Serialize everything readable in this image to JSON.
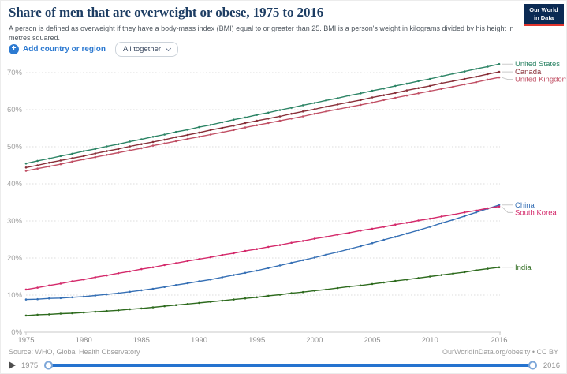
{
  "header": {
    "title": "Share of men that are overweight or obese, 1975 to 2016",
    "subtitle": "A person is defined as overweight if they have a body-mass index (BMI) equal to or greater than 25. BMI is a person's weight in kilograms divided by his height in metres squared.",
    "logo": {
      "line1": "Our World",
      "line2": "in Data"
    }
  },
  "controls": {
    "add_button_label": "Add country or region",
    "dropdown_value": "All together"
  },
  "chart_data": {
    "type": "line",
    "title": "Share of men that are overweight or obese, 1975 to 2016",
    "ylabel": "",
    "xlabel": "",
    "ylim": [
      0,
      75
    ],
    "yticks": [
      0,
      10,
      20,
      30,
      40,
      50,
      60,
      70
    ],
    "ytick_suffix": "%",
    "xticks": [
      1975,
      1980,
      1985,
      1990,
      1995,
      2000,
      2005,
      2010,
      2016
    ],
    "x_range": [
      1975,
      2016
    ],
    "grid": true,
    "legend_position": "right-edge-labels",
    "x": [
      1975,
      1976,
      1977,
      1978,
      1979,
      1980,
      1981,
      1982,
      1983,
      1984,
      1985,
      1986,
      1987,
      1988,
      1989,
      1990,
      1991,
      1992,
      1993,
      1994,
      1995,
      1996,
      1997,
      1998,
      1999,
      2000,
      2001,
      2002,
      2003,
      2004,
      2005,
      2006,
      2007,
      2008,
      2009,
      2010,
      2011,
      2012,
      2013,
      2014,
      2015,
      2016
    ],
    "series": [
      {
        "name": "United States",
        "color": "#2C8465",
        "values": [
          45.5,
          46.2,
          46.8,
          47.5,
          48.1,
          48.8,
          49.4,
          50.1,
          50.7,
          51.4,
          52.0,
          52.7,
          53.3,
          54.0,
          54.6,
          55.3,
          55.9,
          56.6,
          57.3,
          57.9,
          58.6,
          59.2,
          59.9,
          60.5,
          61.2,
          61.8,
          62.5,
          63.1,
          63.8,
          64.4,
          65.1,
          65.7,
          66.4,
          67.0,
          67.7,
          68.3,
          69.0,
          69.7,
          70.3,
          71.0,
          71.6,
          72.3
        ]
      },
      {
        "name": "Canada",
        "color": "#883039",
        "values": [
          44.4,
          45.0,
          45.7,
          46.3,
          46.9,
          47.5,
          48.2,
          48.8,
          49.4,
          50.1,
          50.7,
          51.3,
          51.9,
          52.6,
          53.2,
          53.8,
          54.5,
          55.1,
          55.7,
          56.4,
          57.0,
          57.6,
          58.2,
          58.9,
          59.5,
          60.1,
          60.8,
          61.4,
          62.0,
          62.6,
          63.3,
          63.9,
          64.5,
          65.2,
          65.8,
          66.4,
          67.1,
          67.7,
          68.3,
          68.9,
          69.6,
          70.2
        ]
      },
      {
        "name": "United Kingdom",
        "color": "#C15065",
        "values": [
          43.5,
          44.1,
          44.7,
          45.3,
          46.0,
          46.6,
          47.2,
          47.8,
          48.4,
          49.0,
          49.6,
          50.3,
          50.9,
          51.5,
          52.1,
          52.7,
          53.3,
          53.9,
          54.5,
          55.2,
          55.8,
          56.4,
          57.0,
          57.6,
          58.2,
          58.9,
          59.5,
          60.1,
          60.7,
          61.3,
          61.9,
          62.6,
          63.2,
          63.8,
          64.4,
          65.0,
          65.6,
          66.2,
          66.8,
          67.4,
          68.1,
          68.7
        ]
      },
      {
        "name": "China",
        "color": "#3670B5",
        "values": [
          8.8,
          8.9,
          9.1,
          9.2,
          9.4,
          9.6,
          9.9,
          10.2,
          10.5,
          10.9,
          11.3,
          11.7,
          12.2,
          12.7,
          13.2,
          13.7,
          14.2,
          14.8,
          15.4,
          16.0,
          16.6,
          17.3,
          18.0,
          18.7,
          19.4,
          20.1,
          20.9,
          21.6,
          22.4,
          23.2,
          24.0,
          24.9,
          25.7,
          26.6,
          27.5,
          28.4,
          29.4,
          30.3,
          31.3,
          32.3,
          33.3,
          34.3
        ]
      },
      {
        "name": "South Korea",
        "color": "#D42A6B",
        "values": [
          11.5,
          12.0,
          12.6,
          13.1,
          13.7,
          14.2,
          14.8,
          15.3,
          15.9,
          16.4,
          17.0,
          17.5,
          18.1,
          18.6,
          19.2,
          19.7,
          20.2,
          20.8,
          21.3,
          21.9,
          22.4,
          23.0,
          23.5,
          24.1,
          24.6,
          25.2,
          25.7,
          26.3,
          26.8,
          27.4,
          27.9,
          28.4,
          29.0,
          29.5,
          30.1,
          30.6,
          31.2,
          31.7,
          32.3,
          32.8,
          33.4,
          33.9
        ]
      },
      {
        "name": "India",
        "color": "#2E6B1E",
        "values": [
          4.5,
          4.7,
          4.8,
          5.0,
          5.1,
          5.3,
          5.5,
          5.7,
          5.9,
          6.2,
          6.4,
          6.7,
          7.0,
          7.3,
          7.6,
          7.9,
          8.2,
          8.5,
          8.8,
          9.1,
          9.4,
          9.8,
          10.1,
          10.5,
          10.8,
          11.2,
          11.5,
          11.9,
          12.3,
          12.6,
          13.0,
          13.4,
          13.8,
          14.2,
          14.6,
          15.0,
          15.4,
          15.8,
          16.2,
          16.7,
          17.1,
          17.5
        ]
      }
    ]
  },
  "footer": {
    "source": "Source: WHO, Global Health Observatory",
    "attribution": "OurWorldInData.org/obesity • CC BY",
    "timeline": {
      "start": "1975",
      "end": "2016"
    }
  },
  "colors": {
    "accent_blue": "#2d7ad1",
    "slider_blue": "#2573cf",
    "title_navy": "#1d3d63",
    "logo_navy": "#0b2a53",
    "logo_red": "#e0342c",
    "grid_gray": "#dcdcdc",
    "axis_text_gray": "#a0a0a0"
  }
}
